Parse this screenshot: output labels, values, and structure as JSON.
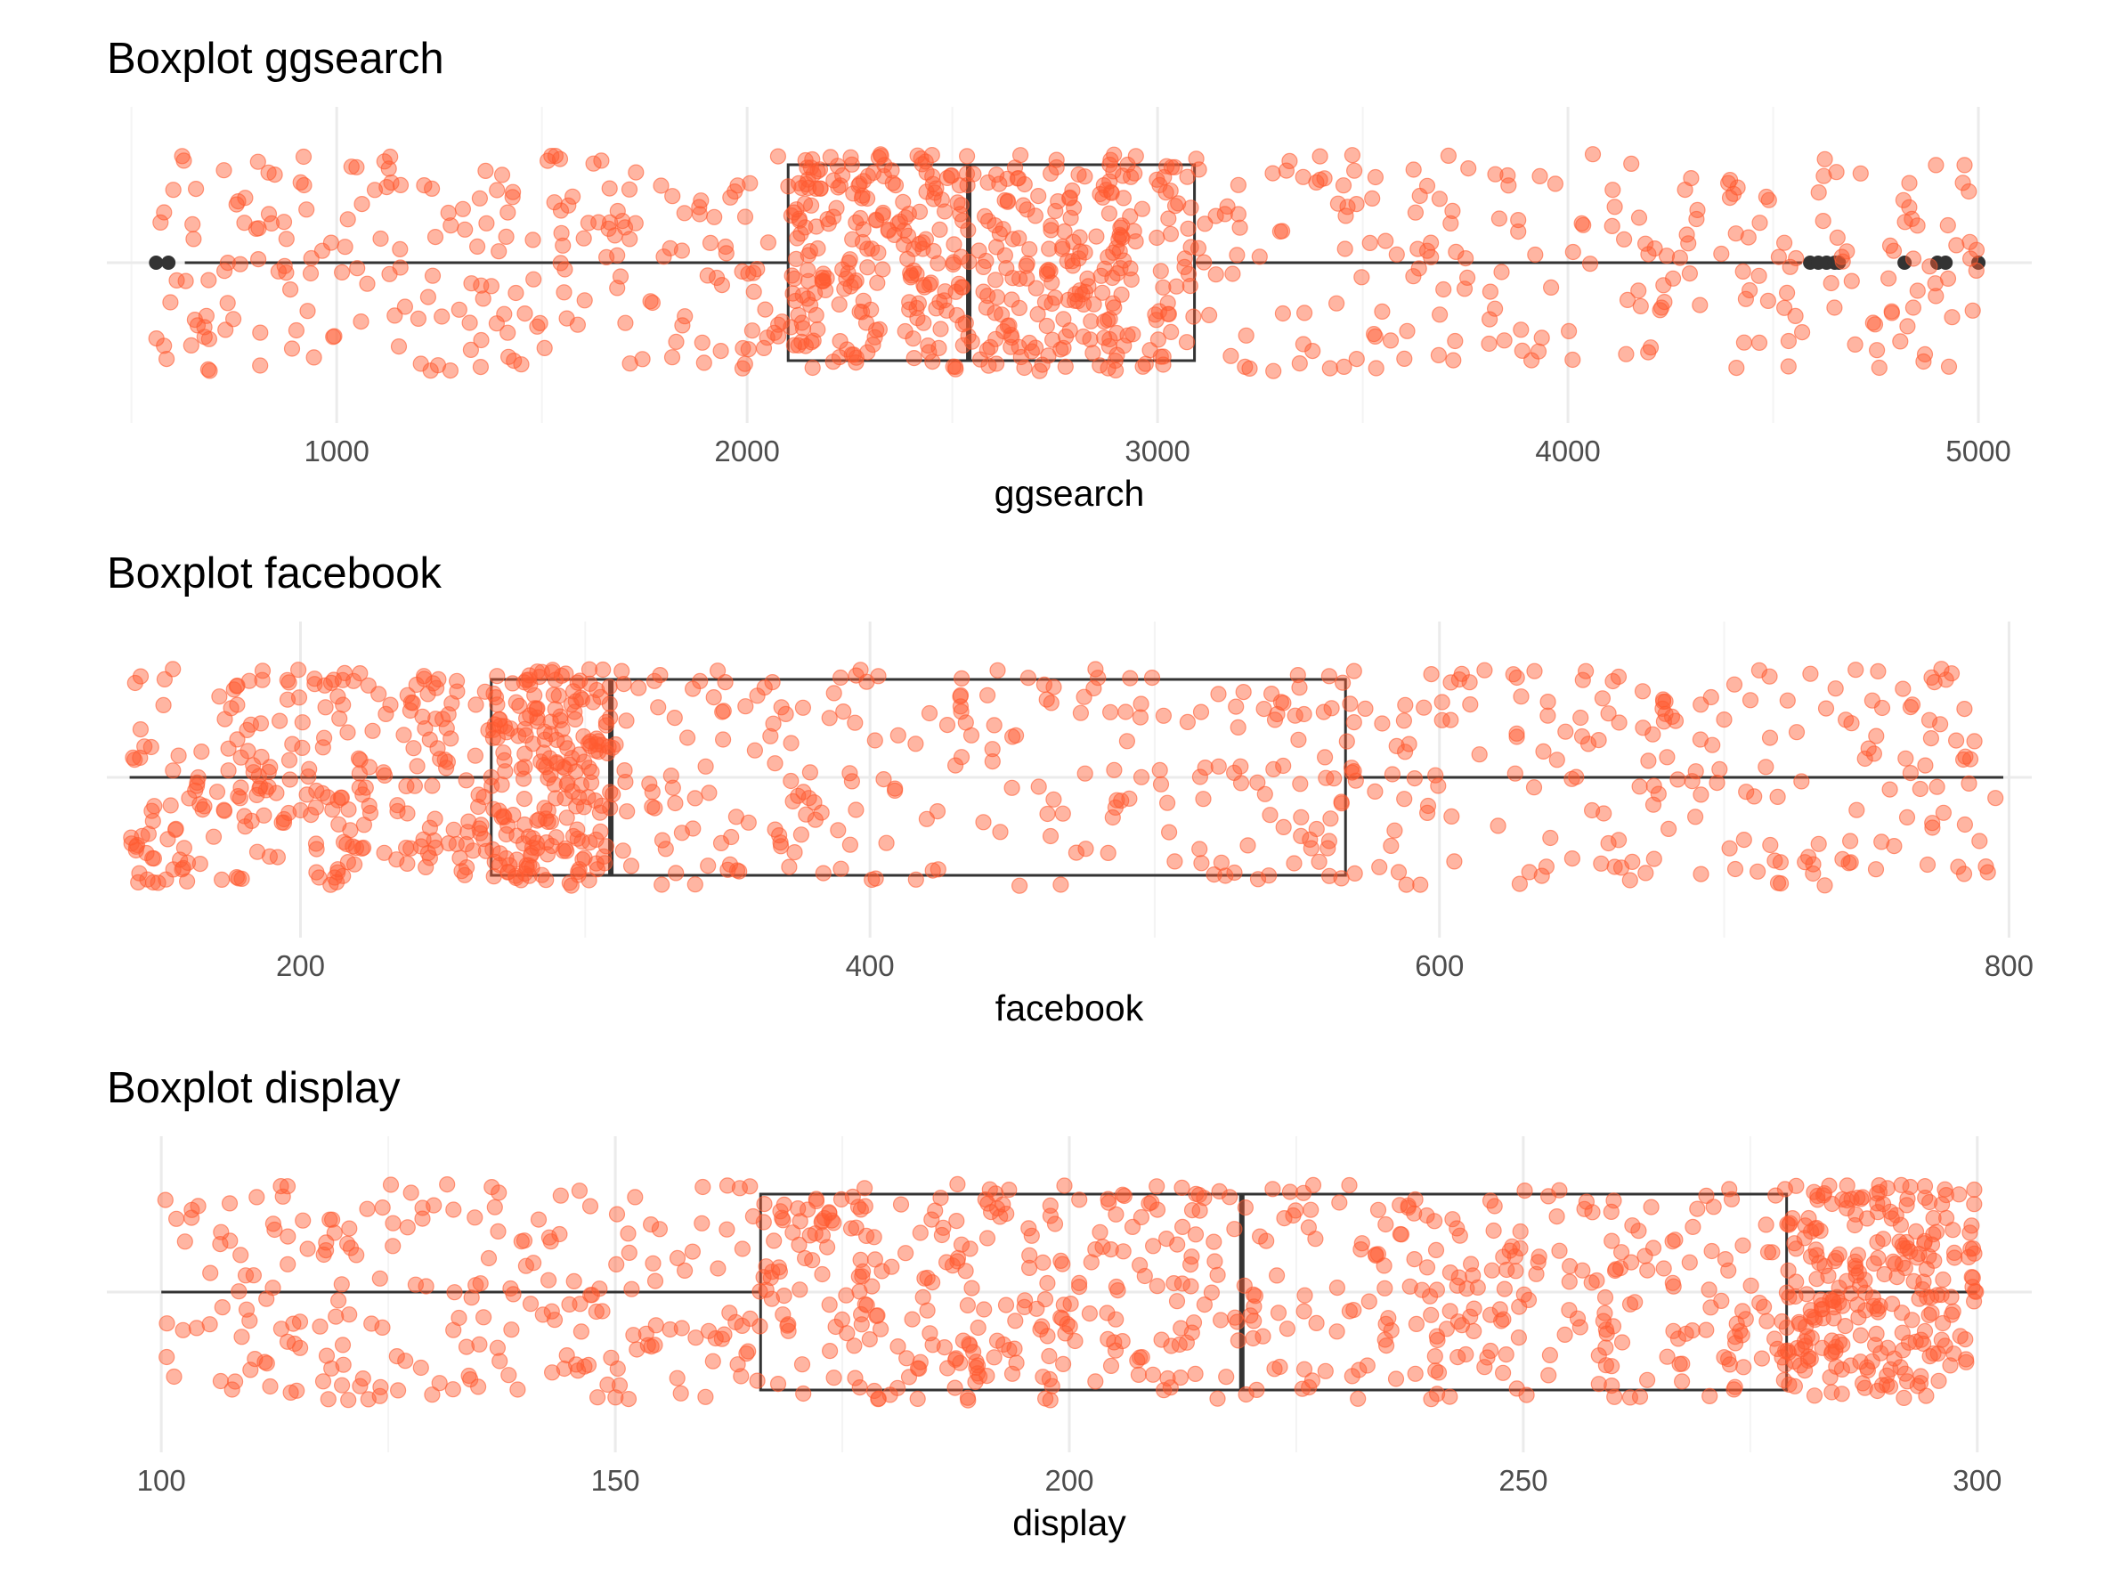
{
  "chart_data": [
    {
      "type": "boxplot",
      "title": "Boxplot ggsearch",
      "xlabel": "ggsearch",
      "xlim": [
        440,
        5130
      ],
      "ticks": [
        1000,
        2000,
        3000,
        4000,
        5000
      ],
      "minor_ticks": [
        500,
        1500,
        2500,
        3500,
        4500
      ],
      "tick_labels": [
        "1000",
        "2000",
        "3000",
        "4000",
        "5000"
      ],
      "box": {
        "lower_whisker": 630,
        "q1": 2100,
        "median": 2540,
        "q3": 3090,
        "upper_whisker": 4570
      },
      "outliers": [
        560,
        590,
        4590,
        4610,
        4630,
        4650,
        4660,
        4820,
        4900,
        4920,
        5000
      ],
      "jitter": {
        "n": 900,
        "seed": 11,
        "min": 560,
        "max": 5000
      },
      "grid": true,
      "legend": "none"
    },
    {
      "type": "boxplot",
      "title": "Boxplot facebook",
      "xlabel": "facebook",
      "xlim": [
        132,
        808
      ],
      "ticks": [
        200,
        400,
        600,
        800
      ],
      "minor_ticks": [
        300,
        500,
        700
      ],
      "tick_labels": [
        "200",
        "400",
        "600",
        "800"
      ],
      "box": {
        "lower_whisker": 140,
        "q1": 267,
        "median": 309,
        "q3": 567,
        "upper_whisker": 798
      },
      "outliers": [],
      "jitter": {
        "n": 900,
        "seed": 23,
        "min": 140,
        "max": 798
      },
      "grid": true,
      "legend": "none"
    },
    {
      "type": "boxplot",
      "title": "Boxplot display",
      "xlabel": "display",
      "xlim": [
        94,
        306
      ],
      "ticks": [
        100,
        150,
        200,
        250,
        300
      ],
      "minor_ticks": [
        125,
        175,
        225,
        275
      ],
      "tick_labels": [
        "100",
        "150",
        "200",
        "250",
        "300"
      ],
      "box": {
        "lower_whisker": 100,
        "q1": 166,
        "median": 219,
        "q3": 279,
        "upper_whisker": 300
      },
      "outliers": [],
      "jitter": {
        "n": 1000,
        "seed": 37,
        "min": 100,
        "max": 300
      },
      "grid": true,
      "legend": "none"
    }
  ],
  "colors": {
    "point": "#ff5a30",
    "box_line": "#333333",
    "outlier": "#333333",
    "grid_major": "#ebebeb",
    "grid_minor": "#f4f4f4",
    "tick_text": "#4d4d4d"
  }
}
